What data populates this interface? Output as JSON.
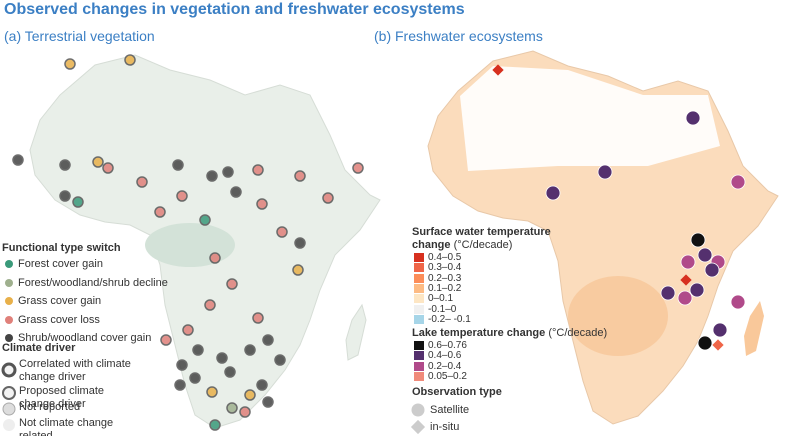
{
  "title": "Observed changes in vegetation and freshwater ecosystems",
  "panel_a": {
    "label": "(a) Terrestrial vegetation",
    "functional_type": {
      "title": "Functional type switch",
      "items": [
        {
          "label": "Forest cover gain",
          "color": "#3a9a7a"
        },
        {
          "label": "Forest/woodland/shrub decline",
          "color": "#9fb08e"
        },
        {
          "label": "Grass cover gain",
          "color": "#e8b04a"
        },
        {
          "label": "Grass cover loss",
          "color": "#e0807a"
        },
        {
          "label": "Shrub/woodland cover gain",
          "color": "#444444"
        }
      ]
    },
    "climate_driver": {
      "title": "Climate driver",
      "items": [
        "Correlated with climate change driver",
        "Proposed climate change driver",
        "Not reported",
        "Not climate change related"
      ]
    }
  },
  "panel_b": {
    "label": "(b) Freshwater ecosystems",
    "surface_water": {
      "title": "Surface water temperature change",
      "unit": "(°C/decade)",
      "items": [
        {
          "label": "0.4–0.5",
          "color": "#d7301f"
        },
        {
          "label": "0.3–0.4",
          "color": "#ef6548"
        },
        {
          "label": "0.2–0.3",
          "color": "#fc8d59"
        },
        {
          "label": "0.1–0.2",
          "color": "#fdbb84"
        },
        {
          "label": "0–0.1",
          "color": "#fde6c4"
        },
        {
          "label": "-0.1–0",
          "color": "#f0f0f0"
        },
        {
          "label": "-0.2– -0.1",
          "color": "#a6d5e8"
        }
      ]
    },
    "lake": {
      "title": "Lake temperature change",
      "unit": "(°C/decade)",
      "items": [
        {
          "label": "0.6–0.76",
          "color": "#111111"
        },
        {
          "label": "0.4–0.6",
          "color": "#54306e"
        },
        {
          "label": "0.2–0.4",
          "color": "#b04a8a"
        },
        {
          "label": "0.05–0.2",
          "color": "#f08a7a"
        }
      ]
    },
    "observation_type": {
      "title": "Observation type",
      "items": [
        "Satellite",
        "in-situ"
      ]
    }
  }
}
